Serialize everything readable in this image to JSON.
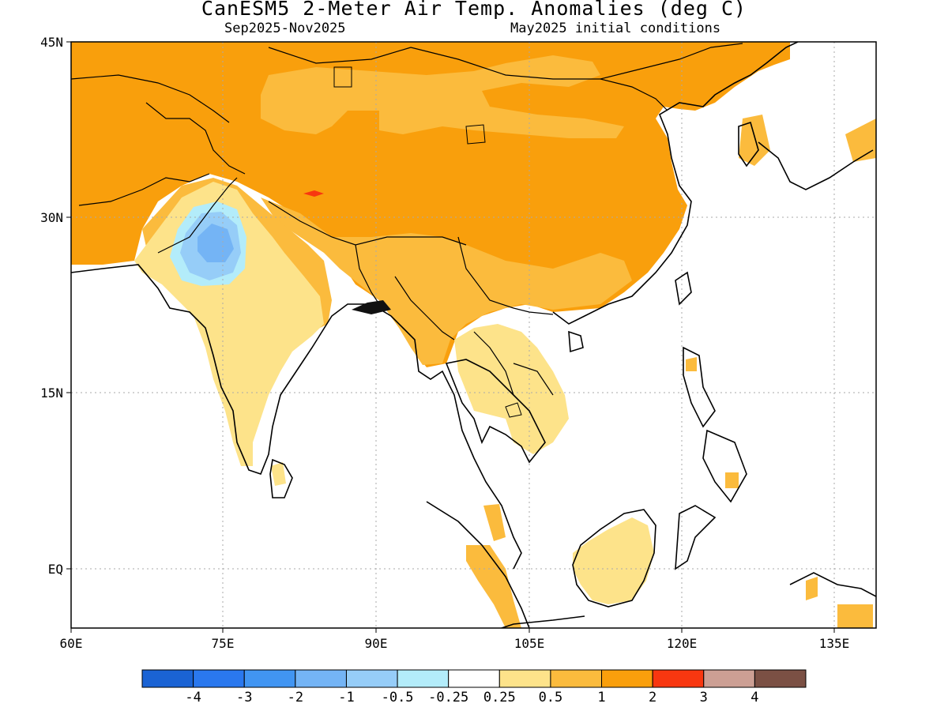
{
  "title": "CanESM5 2-Meter Air Temp. Anomalies (deg C)",
  "subtitle_left": "Sep2025-Nov2025",
  "subtitle_right": "May2025 initial conditions",
  "lon_labels": [
    "60E",
    "75E",
    "90E",
    "105E",
    "120E",
    "135E"
  ],
  "lat_labels": [
    "45N",
    "30N",
    "15N",
    "EQ"
  ],
  "colorbar": {
    "colors": [
      "#1a63d4",
      "#2a78ee",
      "#4195f2",
      "#74b4f5",
      "#96cdf8",
      "#b3ecfa",
      "#ffffff",
      "#fde38a",
      "#fbbb3d",
      "#f99f0c",
      "#f83710",
      "#cc9f94",
      "#7b5044"
    ],
    "labels": [
      "-4",
      "-3",
      "-2",
      "-1",
      "-0.5",
      "-0.25",
      "0.25",
      "0.5",
      "1",
      "2",
      "3",
      "4"
    ]
  },
  "legend_colors": {
    "land_warm_1_2": "#f99f0c",
    "land_warm_05_1": "#fbbb3d",
    "land_warm_025_05": "#fde38a",
    "hot_2_3": "#f83710",
    "cool_1": "#74b4f5",
    "cool_05": "#96cdf8",
    "cool_025": "#b3ecfa"
  }
}
